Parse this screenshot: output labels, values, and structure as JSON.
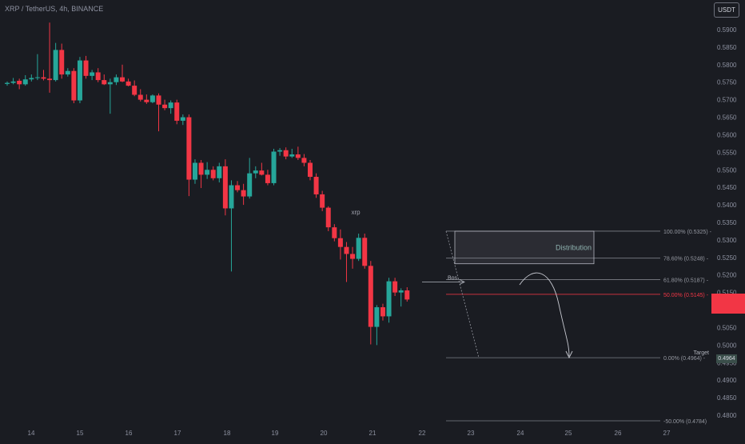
{
  "header": {
    "symbol_title": "XRP / TetherUS, 4h, BINANCE",
    "currency": "USDT"
  },
  "chart_data": {
    "type": "candlestick",
    "symbol": "XRP / TetherUS",
    "interval": "4h",
    "exchange": "BINANCE",
    "price_axis": {
      "ticks": [
        "0.5900",
        "0.5850",
        "0.5800",
        "0.5750",
        "0.5700",
        "0.5650",
        "0.5600",
        "0.5550",
        "0.5500",
        "0.5450",
        "0.5400",
        "0.5350",
        "0.5300",
        "0.5250",
        "0.5200",
        "0.5150",
        "0.5100",
        "0.5050",
        "0.5000",
        "0.4950",
        "0.4900",
        "0.4850",
        "0.4800"
      ],
      "range": [
        0.478,
        0.5925
      ]
    },
    "time_axis": {
      "ticks": [
        "14",
        "15",
        "16",
        "17",
        "18",
        "19",
        "20",
        "21",
        "22",
        "23",
        "24",
        "25",
        "26",
        "27"
      ]
    },
    "candles": [
      {
        "o": 0.5745,
        "h": 0.5752,
        "l": 0.574,
        "c": 0.5748
      },
      {
        "o": 0.5748,
        "h": 0.5762,
        "l": 0.5744,
        "c": 0.5752
      },
      {
        "o": 0.5754,
        "h": 0.576,
        "l": 0.573,
        "c": 0.5744
      },
      {
        "o": 0.5744,
        "h": 0.577,
        "l": 0.574,
        "c": 0.5758
      },
      {
        "o": 0.5758,
        "h": 0.5772,
        "l": 0.5752,
        "c": 0.5762
      },
      {
        "o": 0.5762,
        "h": 0.583,
        "l": 0.5756,
        "c": 0.5764
      },
      {
        "o": 0.5764,
        "h": 0.5785,
        "l": 0.5755,
        "c": 0.576
      },
      {
        "o": 0.576,
        "h": 0.592,
        "l": 0.572,
        "c": 0.5756
      },
      {
        "o": 0.5756,
        "h": 0.5862,
        "l": 0.5752,
        "c": 0.5842
      },
      {
        "o": 0.5842,
        "h": 0.586,
        "l": 0.576,
        "c": 0.5772
      },
      {
        "o": 0.5772,
        "h": 0.579,
        "l": 0.5766,
        "c": 0.5782
      },
      {
        "o": 0.5782,
        "h": 0.579,
        "l": 0.569,
        "c": 0.5698
      },
      {
        "o": 0.5698,
        "h": 0.5822,
        "l": 0.569,
        "c": 0.5812
      },
      {
        "o": 0.5812,
        "h": 0.5825,
        "l": 0.576,
        "c": 0.5768
      },
      {
        "o": 0.5768,
        "h": 0.5785,
        "l": 0.5756,
        "c": 0.5778
      },
      {
        "o": 0.5778,
        "h": 0.579,
        "l": 0.575,
        "c": 0.5756
      },
      {
        "o": 0.5756,
        "h": 0.5772,
        "l": 0.5742,
        "c": 0.5744
      },
      {
        "o": 0.5744,
        "h": 0.576,
        "l": 0.566,
        "c": 0.575
      },
      {
        "o": 0.575,
        "h": 0.5772,
        "l": 0.5742,
        "c": 0.5764
      },
      {
        "o": 0.5764,
        "h": 0.58,
        "l": 0.575,
        "c": 0.5752
      },
      {
        "o": 0.5752,
        "h": 0.576,
        "l": 0.5738,
        "c": 0.574
      },
      {
        "o": 0.574,
        "h": 0.5755,
        "l": 0.571,
        "c": 0.5714
      },
      {
        "o": 0.5714,
        "h": 0.573,
        "l": 0.5695,
        "c": 0.57
      },
      {
        "o": 0.57,
        "h": 0.5715,
        "l": 0.5688,
        "c": 0.5693
      },
      {
        "o": 0.5693,
        "h": 0.5715,
        "l": 0.569,
        "c": 0.5712
      },
      {
        "o": 0.5712,
        "h": 0.5718,
        "l": 0.561,
        "c": 0.5686
      },
      {
        "o": 0.5686,
        "h": 0.57,
        "l": 0.567,
        "c": 0.5676
      },
      {
        "o": 0.5676,
        "h": 0.5698,
        "l": 0.566,
        "c": 0.5692
      },
      {
        "o": 0.5692,
        "h": 0.57,
        "l": 0.563,
        "c": 0.564
      },
      {
        "o": 0.564,
        "h": 0.5658,
        "l": 0.5628,
        "c": 0.565
      },
      {
        "o": 0.565,
        "h": 0.5658,
        "l": 0.5425,
        "c": 0.5472
      },
      {
        "o": 0.5472,
        "h": 0.553,
        "l": 0.546,
        "c": 0.552
      },
      {
        "o": 0.552,
        "h": 0.5528,
        "l": 0.5448,
        "c": 0.5486
      },
      {
        "o": 0.5486,
        "h": 0.5522,
        "l": 0.5474,
        "c": 0.55
      },
      {
        "o": 0.55,
        "h": 0.551,
        "l": 0.547,
        "c": 0.5476
      },
      {
        "o": 0.5476,
        "h": 0.552,
        "l": 0.5464,
        "c": 0.551
      },
      {
        "o": 0.551,
        "h": 0.553,
        "l": 0.537,
        "c": 0.539
      },
      {
        "o": 0.539,
        "h": 0.547,
        "l": 0.521,
        "c": 0.5456
      },
      {
        "o": 0.5456,
        "h": 0.5468,
        "l": 0.5436,
        "c": 0.5442
      },
      {
        "o": 0.5442,
        "h": 0.546,
        "l": 0.54,
        "c": 0.5424
      },
      {
        "o": 0.5424,
        "h": 0.5534,
        "l": 0.5418,
        "c": 0.549
      },
      {
        "o": 0.549,
        "h": 0.551,
        "l": 0.5476,
        "c": 0.5498
      },
      {
        "o": 0.5498,
        "h": 0.552,
        "l": 0.5484,
        "c": 0.5486
      },
      {
        "o": 0.5486,
        "h": 0.55,
        "l": 0.5456,
        "c": 0.5462
      },
      {
        "o": 0.5462,
        "h": 0.556,
        "l": 0.5456,
        "c": 0.5552
      },
      {
        "o": 0.5552,
        "h": 0.5562,
        "l": 0.554,
        "c": 0.5556
      },
      {
        "o": 0.5556,
        "h": 0.5564,
        "l": 0.553,
        "c": 0.5538
      },
      {
        "o": 0.5538,
        "h": 0.556,
        "l": 0.5534,
        "c": 0.5544
      },
      {
        "o": 0.5544,
        "h": 0.5566,
        "l": 0.5528,
        "c": 0.5534
      },
      {
        "o": 0.5534,
        "h": 0.5545,
        "l": 0.551,
        "c": 0.552
      },
      {
        "o": 0.552,
        "h": 0.5528,
        "l": 0.547,
        "c": 0.548
      },
      {
        "o": 0.548,
        "h": 0.549,
        "l": 0.542,
        "c": 0.543
      },
      {
        "o": 0.543,
        "h": 0.544,
        "l": 0.5382,
        "c": 0.5392
      },
      {
        "o": 0.5392,
        "h": 0.5396,
        "l": 0.5325,
        "c": 0.5336
      },
      {
        "o": 0.5336,
        "h": 0.5345,
        "l": 0.5296,
        "c": 0.5305
      },
      {
        "o": 0.5305,
        "h": 0.533,
        "l": 0.5244,
        "c": 0.528
      },
      {
        "o": 0.528,
        "h": 0.5294,
        "l": 0.518,
        "c": 0.526
      },
      {
        "o": 0.526,
        "h": 0.528,
        "l": 0.5218,
        "c": 0.5246
      },
      {
        "o": 0.5246,
        "h": 0.5318,
        "l": 0.524,
        "c": 0.5306
      },
      {
        "o": 0.5306,
        "h": 0.5318,
        "l": 0.5218,
        "c": 0.5226
      },
      {
        "o": 0.5226,
        "h": 0.524,
        "l": 0.5002,
        "c": 0.5052
      },
      {
        "o": 0.5052,
        "h": 0.5114,
        "l": 0.5,
        "c": 0.5108
      },
      {
        "o": 0.5108,
        "h": 0.5118,
        "l": 0.507,
        "c": 0.5082
      },
      {
        "o": 0.5082,
        "h": 0.5192,
        "l": 0.5064,
        "c": 0.5182
      },
      {
        "o": 0.5182,
        "h": 0.5192,
        "l": 0.514,
        "c": 0.515
      },
      {
        "o": 0.515,
        "h": 0.5162,
        "l": 0.511,
        "c": 0.5156
      },
      {
        "o": 0.5156,
        "h": 0.5165,
        "l": 0.5124,
        "c": 0.513
      }
    ],
    "fibonacci": [
      {
        "level": "100.00%",
        "price": "0.5325",
        "label": "100.00% (0.5325)"
      },
      {
        "level": "78.60%",
        "price": "0.5248",
        "label": "78.60% (0.5248)"
      },
      {
        "level": "61.80%",
        "price": "0.5187",
        "label": "61.80% (0.5187)"
      },
      {
        "level": "50.00%",
        "price": "0.5145",
        "label": "50.00% (0.5145)"
      },
      {
        "level": "0.00%",
        "price": "0.4964",
        "label": "0.00% (0.4964)"
      },
      {
        "level": "-50.00%",
        "price": "0.4784",
        "label": "-50.00% (0.4784)"
      }
    ],
    "annotations": {
      "distribution": "Distribution",
      "bos": "Bos",
      "center_label": "xrp",
      "target": "Target",
      "target_badge": "0.4964"
    },
    "colors": {
      "up": "#26a69a",
      "down": "#f23645",
      "background": "#1a1c22",
      "axis_text": "#8d91a0",
      "fib_line": "#9598a1",
      "fib_mid": "#f23645"
    }
  }
}
